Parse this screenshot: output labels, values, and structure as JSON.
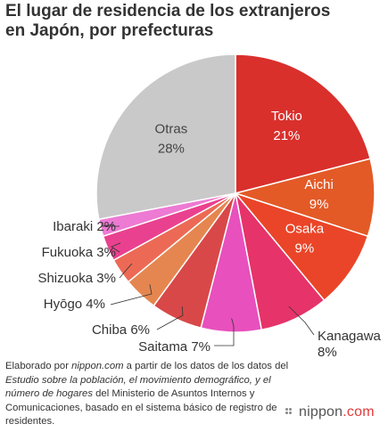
{
  "title_line1": "El lugar de residencia de los extranjeros",
  "title_line2": "en Japón, por prefecturas",
  "source": {
    "p1": "Elaborado por ",
    "site": "nippon.com",
    "p2": " a partir de los datos de los datos del ",
    "study": "Estudio sobre la población, el movimiento demográfico, y el número de hogares",
    "p3": " del Ministerio de Asuntos Internos y Comunicaciones, basado en el sistema básico de registro de residentes."
  },
  "brand": {
    "name": "nippon",
    "suffix": ".com"
  },
  "chart_data": {
    "type": "pie",
    "start": "top, clockwise",
    "slices": [
      {
        "label": "Tokio",
        "value": 21,
        "display": "21%",
        "color": "#d9302c",
        "label_inside": true
      },
      {
        "label": "Aichi",
        "value": 9,
        "display": "9%",
        "color": "#e35a27",
        "label_inside": true
      },
      {
        "label": "Osaka",
        "value": 9,
        "display": "9%",
        "color": "#ea4528",
        "label_inside": true
      },
      {
        "label": "Kanagawa",
        "value": 8,
        "display": "8%",
        "color": "#e6336a",
        "label_inside": false
      },
      {
        "label": "Saitama",
        "value": 7,
        "display": "7%",
        "color": "#e850bd",
        "label_inside": false
      },
      {
        "label": "Chiba",
        "value": 6,
        "display": "6%",
        "color": "#d94848",
        "label_inside": false
      },
      {
        "label": "Hyōgo",
        "value": 4,
        "display": "4%",
        "color": "#e58650",
        "label_inside": false
      },
      {
        "label": "Shizuoka",
        "value": 3,
        "display": "3%",
        "color": "#ec6a55",
        "label_inside": false
      },
      {
        "label": "Fukuoka",
        "value": 3,
        "display": "3%",
        "color": "#e9418f",
        "label_inside": false
      },
      {
        "label": "Ibaraki",
        "value": 2,
        "display": "2%",
        "color": "#ed7ad3",
        "label_inside": false
      },
      {
        "label": "Otras",
        "value": 28,
        "display": "28%",
        "color": "#c9c9c9",
        "label_inside": true
      }
    ]
  }
}
